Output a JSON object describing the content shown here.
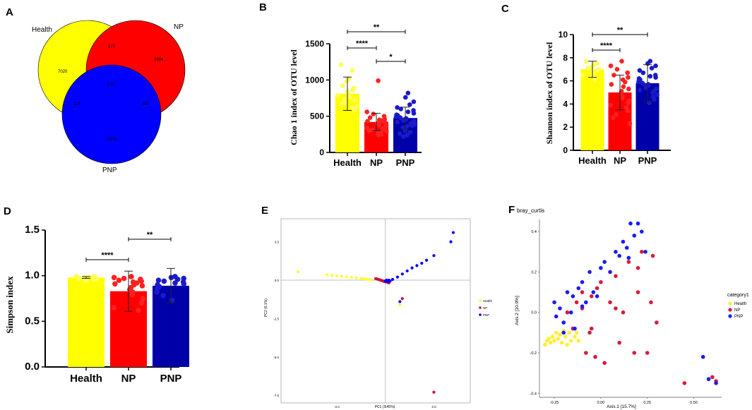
{
  "colors": {
    "health": "#ffff00",
    "np": "#ff0000",
    "pnp": "#0000ff",
    "pnp_bar": "#0000a8",
    "np_dot": "#cc1133",
    "pnp_dot": "#0000ff",
    "health_dot": "#ffff33"
  },
  "chart_data": [
    {
      "panel": "A",
      "type": "venn",
      "sets": [
        "Health",
        "NP",
        "PNP"
      ],
      "regions": {
        "health_only": "7020",
        "np_only": "3804",
        "pnp_only": "2933",
        "health_np": "577",
        "health_pnp": "121",
        "np_pnp": "445",
        "all": "523"
      }
    },
    {
      "panel": "B",
      "type": "bar",
      "ylabel": "Chao 1 index of OTU level",
      "categories": [
        "Health",
        "NP",
        "PNP"
      ],
      "values": [
        810,
        420,
        475
      ],
      "errors": [
        230,
        120,
        150
      ],
      "ylim": [
        0,
        1500
      ],
      "yticks": [
        "0",
        "500",
        "1000",
        "1500"
      ],
      "significance": [
        {
          "from": 0,
          "to": 2,
          "label": "**",
          "level": 1
        },
        {
          "from": 0,
          "to": 1,
          "label": "****",
          "level": 0
        },
        {
          "from": 1,
          "to": 2,
          "label": "*",
          "level": 2
        }
      ],
      "points": [
        [
          1210,
          1130,
          1020,
          980,
          920,
          890,
          860,
          840,
          820,
          800,
          790,
          770,
          760,
          740,
          720,
          700,
          680,
          660,
          640,
          620,
          600,
          580
        ],
        [
          990,
          560,
          530,
          500,
          480,
          460,
          450,
          440,
          430,
          420,
          410,
          400,
          395,
          385,
          375,
          360,
          350,
          340,
          330,
          320,
          310,
          300,
          290,
          280,
          270,
          260,
          250,
          240
        ],
        [
          820,
          760,
          700,
          660,
          620,
          600,
          580,
          560,
          540,
          520,
          510,
          500,
          490,
          480,
          470,
          460,
          450,
          440,
          430,
          420,
          410,
          400,
          390,
          380,
          370,
          360,
          340,
          320,
          300,
          280,
          260,
          240,
          220
        ]
      ]
    },
    {
      "panel": "C",
      "type": "bar",
      "ylabel": "Shannon index of OTU level",
      "categories": [
        "Health",
        "NP",
        "PNP"
      ],
      "values": [
        7.0,
        5.0,
        5.8
      ],
      "errors": [
        0.7,
        1.5,
        1.6
      ],
      "ylim": [
        0,
        10
      ],
      "yticks": [
        "0",
        "2",
        "4",
        "6",
        "8",
        "10"
      ],
      "significance": [
        {
          "from": 0,
          "to": 2,
          "label": "**",
          "level": 1
        },
        {
          "from": 0,
          "to": 1,
          "label": "****",
          "level": 0
        }
      ],
      "points": [
        [
          7.7,
          7.5,
          7.4,
          7.2,
          7.1,
          7.0,
          6.9,
          6.8,
          6.7,
          6.6,
          6.5,
          6.3,
          6.1
        ],
        [
          7.7,
          7.3,
          7.0,
          6.7,
          6.5,
          6.3,
          6.1,
          5.9,
          5.7,
          5.5,
          5.3,
          5.1,
          4.9,
          4.7,
          4.5,
          4.3,
          4.1,
          3.9,
          3.7,
          3.4,
          3.1,
          2.8,
          2.3
        ],
        [
          7.7,
          7.5,
          7.3,
          7.1,
          6.9,
          6.7,
          6.5,
          6.4,
          6.3,
          6.2,
          6.1,
          6.0,
          5.9,
          5.8,
          5.7,
          5.6,
          5.5,
          5.4,
          5.3,
          5.2,
          5.1,
          5.0,
          4.8,
          4.6,
          4.4,
          4.1
        ]
      ]
    },
    {
      "panel": "D",
      "type": "bar",
      "ylabel": "Simpson index",
      "categories": [
        "Health",
        "NP",
        "PNP"
      ],
      "values": [
        0.98,
        0.83,
        0.89
      ],
      "errors": [
        0.01,
        0.22,
        0.19
      ],
      "ylim": [
        0,
        1.5
      ],
      "yticks": [
        "0.0",
        "0.5",
        "1.0",
        "1.5"
      ],
      "significance": [
        {
          "from": 0,
          "to": 1,
          "label": "****",
          "level": 0
        },
        {
          "from": 1,
          "to": 2,
          "label": "**",
          "level": 1
        }
      ],
      "points": [
        [
          0.99,
          0.99,
          0.98,
          0.98,
          0.97,
          0.97,
          0.96,
          0.95
        ],
        [
          0.99,
          0.98,
          0.97,
          0.96,
          0.95,
          0.94,
          0.93,
          0.92,
          0.91,
          0.9,
          0.89,
          0.87,
          0.85,
          0.82,
          0.79,
          0.75,
          0.7,
          0.65,
          0.62
        ],
        [
          0.99,
          0.98,
          0.97,
          0.96,
          0.95,
          0.94,
          0.93,
          0.92,
          0.91,
          0.9,
          0.88,
          0.86,
          0.82,
          0.78,
          0.73
        ]
      ]
    },
    {
      "panel": "E",
      "type": "scatter",
      "xlabel": "PC1 (7.45%)",
      "ylabel": "PC2 (6.1%)",
      "xticks": [
        "-2.0",
        "0",
        "2.0"
      ],
      "yticks": [
        "2.5",
        "0.0",
        "-2.5",
        "-5.0",
        "-7.5"
      ],
      "xlim": [
        -4.3,
        3.5
      ],
      "ylim": [
        -8,
        4
      ],
      "legend": [
        "Health",
        "NP",
        "PNP"
      ],
      "series": [
        {
          "name": "Health",
          "x": [
            -3.6,
            -2.4,
            -2.2,
            -2.0,
            -1.8,
            -1.6,
            -1.4,
            -1.2,
            -1.0,
            -0.9,
            -0.8,
            -0.7,
            -0.6,
            0.6
          ],
          "y": [
            0.55,
            0.35,
            0.3,
            0.28,
            0.25,
            0.22,
            0.18,
            0.15,
            0.12,
            0.1,
            0.08,
            0.05,
            0.03,
            -1.6
          ]
        },
        {
          "name": "NP",
          "x": [
            -0.4,
            -0.35,
            -0.3,
            -0.25,
            -0.2,
            -0.15,
            -0.1,
            -0.05,
            0.0,
            0.05,
            0.1,
            0.15,
            0.7,
            2.0
          ],
          "y": [
            0.1,
            0.08,
            0.05,
            0.03,
            0.0,
            -0.02,
            -0.05,
            -0.08,
            -0.1,
            -0.12,
            -0.15,
            -0.18,
            -1.2,
            -7.3
          ]
        },
        {
          "name": "PNP",
          "x": [
            0.0,
            0.05,
            0.1,
            0.15,
            0.2,
            0.3,
            0.5,
            0.7,
            0.9,
            1.1,
            1.3,
            1.5,
            1.7,
            2.0,
            2.7,
            2.8,
            0.6
          ],
          "y": [
            -0.05,
            0.0,
            -0.1,
            0.0,
            -0.05,
            0.05,
            0.2,
            0.4,
            0.6,
            0.8,
            0.95,
            1.1,
            1.3,
            1.6,
            2.5,
            3.1,
            -1.4
          ]
        }
      ]
    },
    {
      "panel": "F",
      "type": "scatter",
      "title": "bray_curtis",
      "xlabel": "Axis.1 [15.7%]",
      "ylabel": "Axis.2 [10.9%]",
      "xticks": [
        "-0.25",
        "0.00",
        "0.25",
        "0.50"
      ],
      "yticks": [
        "0.4",
        "0.2",
        "0.0",
        "-0.2",
        "-0.4"
      ],
      "xlim": [
        -0.33,
        0.65
      ],
      "ylim": [
        -0.42,
        0.46
      ],
      "legend_title": "category1",
      "legend": [
        "Health",
        "NP",
        "PNP"
      ],
      "series": [
        {
          "name": "Health",
          "x": [
            -0.3,
            -0.29,
            -0.28,
            -0.27,
            -0.26,
            -0.25,
            -0.24,
            -0.23,
            -0.22,
            -0.21,
            -0.2,
            -0.19,
            -0.18,
            -0.17,
            -0.16,
            -0.15,
            -0.14,
            -0.13,
            -0.12
          ],
          "y": [
            -0.16,
            -0.14,
            -0.13,
            -0.15,
            -0.12,
            -0.14,
            -0.1,
            -0.13,
            -0.11,
            -0.15,
            -0.09,
            -0.12,
            -0.16,
            -0.1,
            -0.14,
            -0.08,
            -0.12,
            -0.1,
            -0.14
          ]
        },
        {
          "name": "NP",
          "x": [
            -0.2,
            -0.18,
            -0.15,
            -0.13,
            -0.1,
            -0.08,
            -0.06,
            -0.05,
            -0.03,
            -0.02,
            0.0,
            0.02,
            0.05,
            0.08,
            0.1,
            0.12,
            0.15,
            0.18,
            0.2,
            0.22,
            0.25,
            0.27,
            0.28,
            0.3,
            0.45,
            0.6,
            0.62,
            -0.1,
            -0.05,
            0.08,
            0.2
          ],
          "y": [
            -0.05,
            0.0,
            -0.08,
            0.05,
            0.02,
            -0.2,
            -0.1,
            0.08,
            -0.22,
            0.12,
            0.15,
            -0.25,
            0.05,
            0.18,
            -0.15,
            0.0,
            0.25,
            -0.2,
            0.1,
            0.3,
            -0.2,
            0.05,
            0.28,
            -0.05,
            -0.35,
            -0.32,
            -0.34,
            0.1,
            -0.08,
            0.02,
            0.22
          ]
        },
        {
          "name": "PNP",
          "x": [
            -0.25,
            -0.24,
            -0.22,
            -0.2,
            -0.18,
            -0.16,
            -0.14,
            -0.12,
            -0.1,
            -0.08,
            -0.06,
            -0.04,
            -0.02,
            0.0,
            0.02,
            0.05,
            0.08,
            0.1,
            0.12,
            0.14,
            0.16,
            0.18,
            0.2,
            0.22,
            0.24,
            0.55,
            0.58,
            0.62,
            -0.2,
            -0.15,
            -0.1,
            0.15
          ],
          "y": [
            0.05,
            -0.02,
            0.02,
            -0.05,
            0.1,
            0.0,
            -0.08,
            0.12,
            0.15,
            0.05,
            0.2,
            0.1,
            0.08,
            0.22,
            0.25,
            0.2,
            0.3,
            0.28,
            0.35,
            0.32,
            0.44,
            0.38,
            0.44,
            0.4,
            0.3,
            -0.22,
            -0.33,
            -0.35,
            -0.1,
            0.08,
            0.03,
            0.27
          ]
        }
      ]
    }
  ],
  "panel_labels": [
    "A",
    "B",
    "C",
    "D",
    "E",
    "F"
  ]
}
